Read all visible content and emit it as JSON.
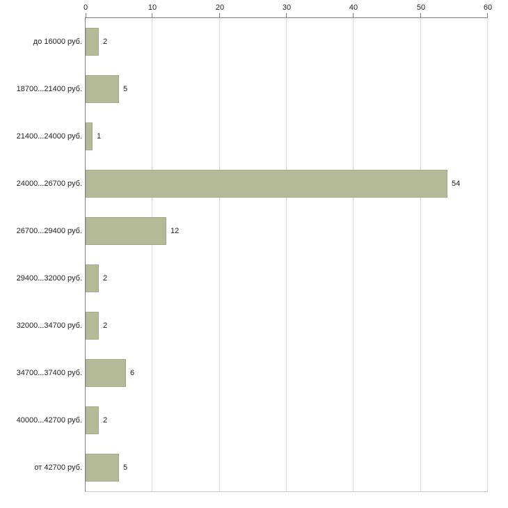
{
  "chart_data": {
    "type": "bar",
    "orientation": "horizontal",
    "title": "",
    "xlabel": "",
    "ylabel": "",
    "categories": [
      "до 16000 руб.",
      "18700...21400 руб.",
      "21400...24000 руб.",
      "24000...26700 руб.",
      "26700...29400 руб.",
      "29400...32000 руб.",
      "32000...34700 руб.",
      "34700...37400 руб.",
      "40000...42700 руб.",
      "от 42700 руб."
    ],
    "values": [
      2,
      5,
      1,
      54,
      12,
      2,
      2,
      6,
      2,
      5
    ],
    "xlim": [
      0,
      60
    ],
    "ticks": [
      0,
      10,
      20,
      30,
      40,
      50,
      60
    ],
    "grid": true,
    "axis_position": "top",
    "bar_color": "#b4b996",
    "bar_border_color": "#a3a98b",
    "gridline_color": "#dcdcdc",
    "axis_color": "#808080",
    "text_color": "#222222",
    "legend": "none"
  }
}
